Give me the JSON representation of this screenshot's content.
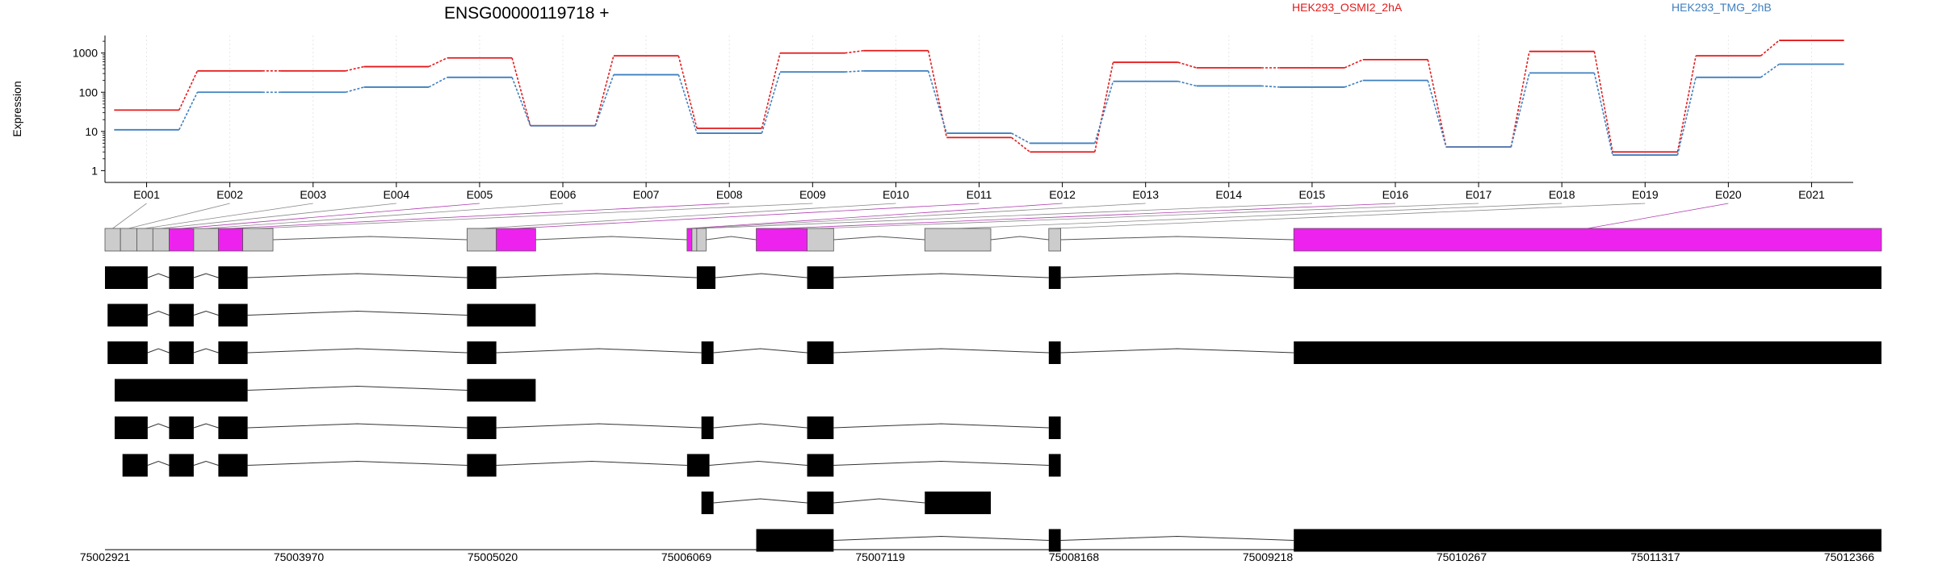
{
  "chart_data": {
    "type": "line",
    "title": "ENSG00000119718 +",
    "ylabel": "Expression",
    "y_scale": "log",
    "y_ticks": [
      "1",
      "10",
      "100",
      "1000"
    ],
    "x_labels": [
      "E001",
      "E002",
      "E003",
      "E004",
      "E005",
      "E006",
      "E007",
      "E008",
      "E009",
      "E010",
      "E011",
      "E012",
      "E013",
      "E014",
      "E015",
      "E016",
      "E017",
      "E018",
      "E019",
      "E020",
      "E021"
    ],
    "legend": [
      "HEK293_OSMI2_2hA",
      "HEK293_TMG_2hB"
    ],
    "colors": {
      "series1": "#e31a1c",
      "series2": "#3f7fbf",
      "highlight": "#ee22ee",
      "exon": "#cccccc"
    },
    "series": [
      {
        "name": "HEK293_OSMI2_2hA",
        "values": [
          35,
          350,
          350,
          450,
          750,
          14,
          850,
          12,
          1000,
          1150,
          7,
          3,
          580,
          420,
          420,
          680,
          4,
          1100,
          3,
          850,
          2100
        ]
      },
      {
        "name": "HEK293_TMG_2hB",
        "values": [
          11,
          100,
          100,
          135,
          240,
          14,
          280,
          9,
          330,
          350,
          9,
          5,
          190,
          145,
          135,
          200,
          4,
          310,
          2.5,
          240,
          520
        ]
      }
    ],
    "genomic_ticks": [
      "75002921",
      "75003970",
      "75005020",
      "75006069",
      "75007119",
      "75008168",
      "75009218",
      "75010267",
      "75011317",
      "75012366"
    ],
    "gene_model": {
      "exons": [
        [
          75002921,
          75003004
        ],
        [
          75003004,
          75003092
        ],
        [
          75003092,
          75003178
        ],
        [
          75003178,
          75003265
        ],
        [
          75003265,
          75003397
        ],
        [
          75003397,
          75003529
        ],
        [
          75003529,
          75003660
        ],
        [
          75003660,
          75003822
        ],
        [
          75004863,
          75005020
        ],
        [
          75005020,
          75005231
        ],
        [
          75006043,
          75006069
        ],
        [
          75006069,
          75006095
        ],
        [
          75006095,
          75006145
        ],
        [
          75006414,
          75006687
        ],
        [
          75006687,
          75006829
        ],
        [
          75007318,
          75007672
        ],
        [
          75007983,
          75008047
        ],
        [
          75009297,
          75012449
        ]
      ],
      "highlighted": [
        4,
        6,
        9,
        10,
        13,
        17
      ]
    },
    "transcripts": [
      [
        [
          75002921,
          75003150
        ],
        [
          75003265,
          75003397
        ],
        [
          75003529,
          75003686
        ],
        [
          75004863,
          75005020
        ],
        [
          75006095,
          75006195
        ],
        [
          75006687,
          75006829
        ],
        [
          75007983,
          75008047
        ],
        [
          75009297,
          75012449
        ]
      ],
      [
        [
          75002935,
          75003150
        ],
        [
          75003265,
          75003397
        ],
        [
          75003529,
          75003686
        ],
        [
          75004863,
          75005231
        ]
      ],
      [
        [
          75002935,
          75003150
        ],
        [
          75003265,
          75003397
        ],
        [
          75003529,
          75003686
        ],
        [
          75004863,
          75005020
        ],
        [
          75006120,
          75006185
        ],
        [
          75006687,
          75006829
        ],
        [
          75007983,
          75008047
        ],
        [
          75009297,
          75012449
        ]
      ],
      [
        [
          75002973,
          75003686
        ],
        [
          75004863,
          75005231
        ]
      ],
      [
        [
          75002973,
          75003150
        ],
        [
          75003265,
          75003397
        ],
        [
          75003529,
          75003686
        ],
        [
          75004863,
          75005020
        ],
        [
          75006120,
          75006185
        ],
        [
          75006687,
          75006829
        ],
        [
          75007983,
          75008047
        ]
      ],
      [
        [
          75003015,
          75003150
        ],
        [
          75003265,
          75003397
        ],
        [
          75003529,
          75003686
        ],
        [
          75004863,
          75005020
        ],
        [
          75006043,
          75006163
        ],
        [
          75006687,
          75006829
        ],
        [
          75007983,
          75008047
        ]
      ],
      [
        [
          75006120,
          75006185
        ],
        [
          75006687,
          75006829
        ],
        [
          75007318,
          75007672
        ]
      ],
      [
        [
          75006414,
          75006829
        ],
        [
          75007983,
          75008047
        ],
        [
          75009297,
          75012449
        ]
      ]
    ]
  }
}
